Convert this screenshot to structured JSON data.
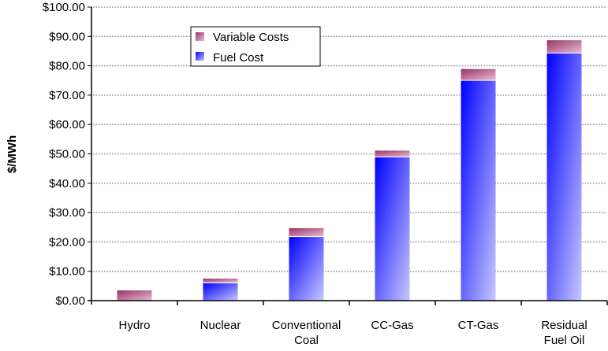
{
  "chart_data": {
    "type": "bar",
    "stacked": true,
    "title": "",
    "xlabel": "",
    "ylabel": "$/MWh",
    "ylim": [
      0,
      100
    ],
    "ytick_step": 10,
    "ytick_labels": [
      "$0.00",
      "$10.00",
      "$20.00",
      "$30.00",
      "$40.00",
      "$50.00",
      "$60.00",
      "$70.00",
      "$80.00",
      "$90.00",
      "$100.00"
    ],
    "grid": true,
    "categories": [
      [
        "Hydro"
      ],
      [
        "Nuclear"
      ],
      [
        "Conventional",
        "Coal"
      ],
      [
        "CC-Gas"
      ],
      [
        "CT-Gas"
      ],
      [
        "Residual",
        "Fuel Oil"
      ]
    ],
    "series": [
      {
        "name": "Fuel Cost",
        "values": [
          0,
          5.9,
          21.7,
          48.8,
          74.9,
          84.2
        ],
        "color_start": "#0000ff",
        "color_end": "#c8c8ff"
      },
      {
        "name": "Variable Costs",
        "values": [
          3.5,
          1.6,
          3.0,
          2.3,
          4.0,
          4.5
        ],
        "color_start": "#993366",
        "color_end": "#e0b8cc"
      }
    ],
    "legend": {
      "placement": "top-left",
      "entries": [
        "Variable Costs",
        "Fuel Cost"
      ]
    }
  }
}
